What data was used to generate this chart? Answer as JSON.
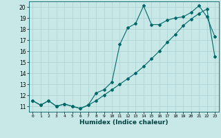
{
  "xlabel": "Humidex (Indice chaleur)",
  "bg_color": "#c8e8e8",
  "grid_color": "#b0d4d4",
  "line_color": "#006868",
  "xlim": [
    -0.5,
    23.5
  ],
  "ylim": [
    10.5,
    20.5
  ],
  "xticks": [
    0,
    1,
    2,
    3,
    4,
    5,
    6,
    7,
    8,
    9,
    10,
    11,
    12,
    13,
    14,
    15,
    16,
    17,
    18,
    19,
    20,
    21,
    22,
    23
  ],
  "yticks": [
    11,
    12,
    13,
    14,
    15,
    16,
    17,
    18,
    19,
    20
  ],
  "curve1_x": [
    0,
    1,
    2,
    3,
    4,
    5,
    6,
    7,
    8,
    9,
    10,
    11,
    12,
    13,
    14,
    15,
    16,
    17,
    18,
    19,
    20,
    21,
    22,
    23
  ],
  "curve1_y": [
    11.5,
    11.1,
    11.5,
    11.0,
    11.2,
    11.0,
    10.8,
    11.1,
    12.2,
    12.5,
    13.2,
    16.6,
    18.1,
    18.5,
    20.1,
    18.4,
    18.4,
    18.8,
    19.0,
    19.1,
    19.5,
    20.1,
    19.1,
    17.3
  ],
  "curve2_x": [
    0,
    1,
    2,
    3,
    4,
    5,
    6,
    7,
    8,
    9,
    10,
    11,
    12,
    13,
    14,
    15,
    16,
    17,
    18,
    19,
    20,
    21,
    22,
    23
  ],
  "curve2_y": [
    11.5,
    11.1,
    11.5,
    11.0,
    11.2,
    11.0,
    10.8,
    11.1,
    11.5,
    12.0,
    12.5,
    13.0,
    13.5,
    14.0,
    14.6,
    15.3,
    16.0,
    16.8,
    17.5,
    18.3,
    18.9,
    19.4,
    19.8,
    15.5
  ]
}
